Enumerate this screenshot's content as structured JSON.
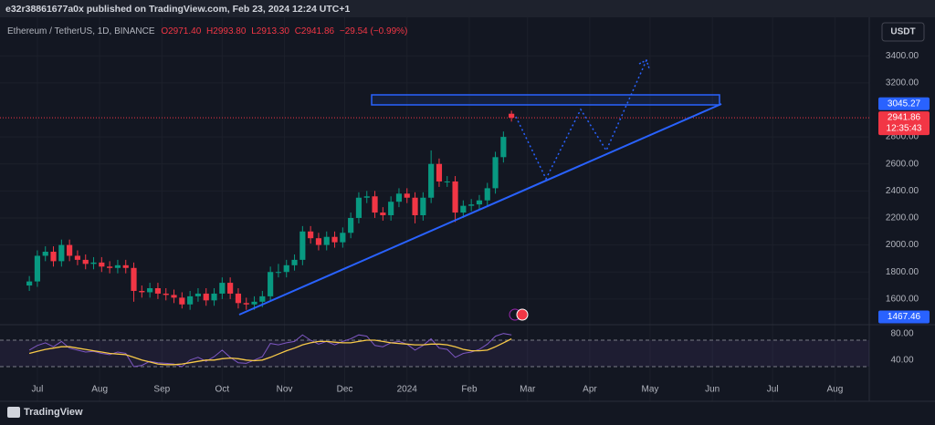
{
  "header": {
    "published": "e32r38861677a0x published on TradingView.com, Feb 23, 2024 12:24 UTC+1",
    "brand": "TradingView"
  },
  "chart_data": [
    {
      "type": "candlestick",
      "title": "Ethereum / TetherUS, 1D, BINANCE",
      "ohlc_text": [
        "O2971.40",
        "H2993.80",
        "L2913.30",
        "C2941.86",
        "−29.54 (−0.99%)"
      ],
      "currency": "USDT",
      "x": [
        -4,
        0,
        4,
        8,
        12,
        16,
        20,
        24,
        28,
        32,
        36,
        40,
        44,
        48,
        52,
        56,
        60,
        64,
        68,
        72,
        76,
        80,
        84,
        88,
        92,
        96,
        100,
        104,
        108,
        112,
        116,
        120,
        124,
        128,
        132,
        136,
        140,
        144,
        148,
        152,
        156,
        160,
        164,
        168,
        172,
        176,
        180,
        184,
        188,
        192,
        196,
        200,
        204,
        208,
        212,
        216,
        220,
        224,
        228,
        232,
        236
      ],
      "open": [
        1700,
        1730,
        1920,
        1950,
        1880,
        2000,
        1920,
        1890,
        1860,
        1870,
        1840,
        1830,
        1850,
        1830,
        1660,
        1650,
        1680,
        1640,
        1630,
        1610,
        1560,
        1620,
        1640,
        1590,
        1640,
        1720,
        1640,
        1570,
        1560,
        1580,
        1620,
        1800,
        1800,
        1850,
        1890,
        2100,
        2050,
        2000,
        2060,
        2020,
        2090,
        2200,
        2350,
        2360,
        2240,
        2220,
        2320,
        2380,
        2350,
        2220,
        2350,
        2600,
        2470,
        2470,
        2240,
        2290,
        2300,
        2330,
        2420,
        2650,
        2971.4
      ],
      "high": [
        1770,
        1960,
        1990,
        1990,
        2040,
        2040,
        1960,
        1930,
        1910,
        1910,
        1880,
        1890,
        1890,
        1870,
        1700,
        1720,
        1720,
        1680,
        1670,
        1650,
        1660,
        1680,
        1680,
        1680,
        1760,
        1760,
        1680,
        1610,
        1620,
        1660,
        1840,
        1860,
        1890,
        1930,
        2140,
        2140,
        2090,
        2100,
        2100,
        2130,
        2240,
        2390,
        2400,
        2400,
        2280,
        2360,
        2420,
        2420,
        2390,
        2390,
        2700,
        2640,
        2510,
        2510,
        2330,
        2340,
        2370,
        2460,
        2690,
        2840,
        2993.8
      ],
      "low": [
        1660,
        1690,
        1880,
        1840,
        1840,
        1880,
        1850,
        1820,
        1820,
        1800,
        1790,
        1790,
        1790,
        1580,
        1610,
        1610,
        1600,
        1590,
        1570,
        1530,
        1520,
        1580,
        1550,
        1550,
        1600,
        1600,
        1530,
        1520,
        1520,
        1540,
        1580,
        1760,
        1760,
        1810,
        1850,
        2010,
        1960,
        1960,
        1980,
        1980,
        2050,
        2160,
        2310,
        2200,
        2180,
        2180,
        2280,
        2310,
        2160,
        2180,
        2310,
        2430,
        2430,
        2170,
        2200,
        2250,
        2260,
        2290,
        2380,
        2610,
        2913.3
      ],
      "close": [
        1730,
        1920,
        1950,
        1880,
        2000,
        1920,
        1890,
        1860,
        1870,
        1840,
        1830,
        1850,
        1830,
        1660,
        1650,
        1680,
        1640,
        1630,
        1610,
        1560,
        1620,
        1640,
        1590,
        1640,
        1720,
        1640,
        1570,
        1560,
        1580,
        1620,
        1800,
        1800,
        1850,
        1890,
        2100,
        2050,
        2000,
        2060,
        2020,
        2090,
        2200,
        2350,
        2360,
        2240,
        2220,
        2320,
        2380,
        2350,
        2220,
        2350,
        2600,
        2470,
        2470,
        2240,
        2290,
        2300,
        2330,
        2420,
        2650,
        2800,
        2941.86
      ],
      "up_color": "#089981",
      "down_color": "#f23645",
      "xlim": [
        -18.6,
        414.1
      ],
      "xticks": [
        {
          "value": 0,
          "label": "Jul"
        },
        {
          "value": 31,
          "label": "Aug"
        },
        {
          "value": 62,
          "label": "Sep"
        },
        {
          "value": 92,
          "label": "Oct"
        },
        {
          "value": 123,
          "label": "Nov"
        },
        {
          "value": 153,
          "label": "Dec"
        },
        {
          "value": 184,
          "label": "2024"
        },
        {
          "value": 215,
          "label": "Feb"
        },
        {
          "value": 244,
          "label": "Mar"
        },
        {
          "value": 275,
          "label": "Apr"
        },
        {
          "value": 305,
          "label": "May"
        },
        {
          "value": 336,
          "label": "Jun"
        },
        {
          "value": 366,
          "label": "Jul"
        },
        {
          "value": 397,
          "label": "Aug"
        }
      ],
      "ylim": [
        1410,
        3685
      ],
      "yticks": [
        {
          "value": 1600,
          "label": "1600.00"
        },
        {
          "value": 1800,
          "label": "1800.00"
        },
        {
          "value": 2000,
          "label": "2000.00"
        },
        {
          "value": 2200,
          "label": "2200.00"
        },
        {
          "value": 2400,
          "label": "2400.00"
        },
        {
          "value": 2600,
          "label": "2600.00"
        },
        {
          "value": 2800,
          "label": "2800.00"
        },
        {
          "value": 3200,
          "label": "3200.00"
        },
        {
          "value": 3400,
          "label": "3400.00"
        }
      ],
      "grid": true,
      "price_badges": [
        {
          "value": 3045.27,
          "color": "#2962ff"
        },
        {
          "value": 2941.86,
          "color": "#f23645",
          "timer": "12:35:43"
        },
        {
          "value": 1467.46,
          "color": "#2962ff"
        }
      ]
    },
    {
      "type": "line",
      "x": [
        -4,
        0,
        4,
        8,
        12,
        16,
        20,
        24,
        28,
        32,
        36,
        40,
        44,
        48,
        52,
        56,
        60,
        64,
        68,
        72,
        76,
        80,
        84,
        88,
        92,
        96,
        100,
        104,
        108,
        112,
        116,
        120,
        124,
        128,
        132,
        136,
        140,
        144,
        148,
        152,
        156,
        160,
        164,
        168,
        172,
        176,
        180,
        184,
        188,
        192,
        196,
        200,
        204,
        208,
        212,
        216,
        220,
        224,
        228,
        232,
        236
      ],
      "values": [
        55,
        62,
        66,
        60,
        68,
        58,
        55,
        52,
        53,
        50,
        48,
        52,
        50,
        30,
        32,
        38,
        36,
        35,
        34,
        30,
        40,
        44,
        38,
        45,
        55,
        44,
        36,
        35,
        40,
        45,
        65,
        63,
        66,
        68,
        78,
        70,
        64,
        68,
        63,
        68,
        72,
        78,
        76,
        62,
        60,
        66,
        68,
        64,
        55,
        62,
        72,
        58,
        56,
        44,
        50,
        52,
        56,
        64,
        76,
        80,
        78
      ],
      "color": "#7e57c2",
      "ma_values": [
        50,
        53,
        56,
        58,
        60,
        60,
        58,
        56,
        54,
        52,
        50,
        49,
        48,
        44,
        40,
        37,
        34,
        33,
        33,
        34,
        36,
        38,
        40,
        40,
        42,
        43,
        42,
        40,
        39,
        40,
        44,
        49,
        54,
        58,
        63,
        66,
        68,
        68,
        67,
        66,
        66,
        68,
        70,
        70,
        68,
        66,
        65,
        64,
        63,
        63,
        64,
        64,
        63,
        60,
        56,
        54,
        54,
        55,
        60,
        66,
        72
      ],
      "ma_color": "#f7c948",
      "xlim": [
        -18.6,
        414.1
      ],
      "ylim": [
        19,
        92
      ],
      "yticks": [
        {
          "value": 80,
          "label": "80.00"
        },
        {
          "value": 40,
          "label": "40.00"
        }
      ],
      "band": [
        30,
        70
      ]
    }
  ]
}
